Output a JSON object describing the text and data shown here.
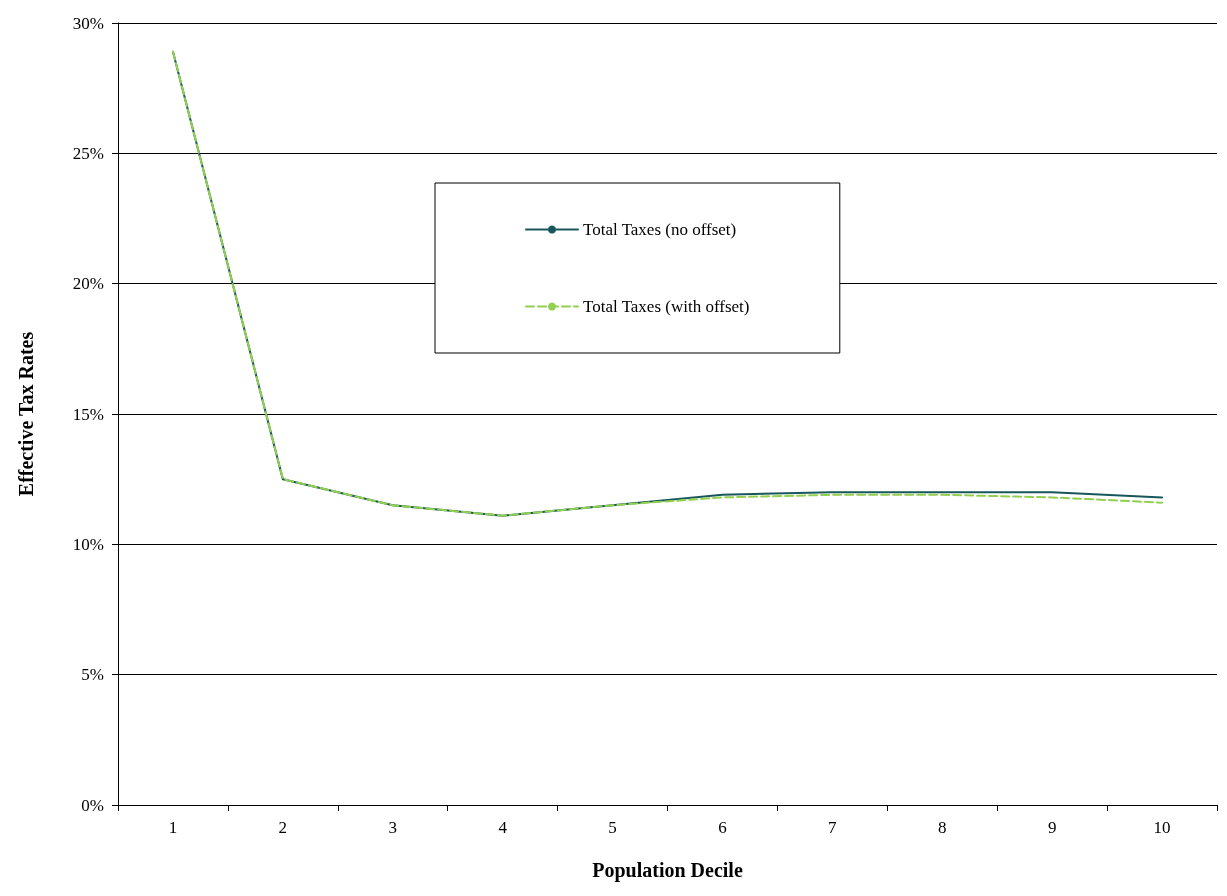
{
  "chart_data": {
    "type": "line",
    "xlabel": "Population Decile",
    "ylabel": "Effective Tax Rates",
    "categories": [
      "1",
      "2",
      "3",
      "4",
      "5",
      "6",
      "7",
      "8",
      "9",
      "10"
    ],
    "series": [
      {
        "name": "Total Taxes (no offset)",
        "color": "#17575b",
        "line_style": "solid",
        "values": [
          28.9,
          12.5,
          11.5,
          11.1,
          11.5,
          11.9,
          12.0,
          12.0,
          12.0,
          11.8
        ]
      },
      {
        "name": "Total Taxes (with offset)",
        "color": "#92d050",
        "line_style": "dashed",
        "values": [
          28.9,
          12.5,
          11.5,
          11.1,
          11.5,
          11.8,
          11.9,
          11.9,
          11.8,
          11.6
        ]
      }
    ],
    "ylim": [
      0,
      30
    ],
    "yticks": [
      {
        "value": 0,
        "label": "0%"
      },
      {
        "value": 5,
        "label": "5%"
      },
      {
        "value": 10,
        "label": "10%"
      },
      {
        "value": 15,
        "label": "15%"
      },
      {
        "value": 20,
        "label": "20%"
      },
      {
        "value": 25,
        "label": "25%"
      },
      {
        "value": 30,
        "label": "30%"
      }
    ],
    "grid": "y",
    "legend": "top",
    "marker": "none"
  }
}
